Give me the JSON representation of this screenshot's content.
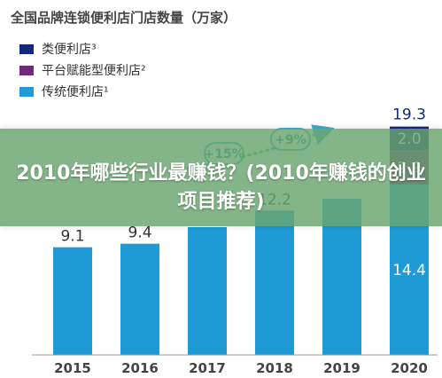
{
  "chart_data": {
    "type": "bar",
    "title": "全国品牌连锁便利店门店数量（万家）",
    "categories": [
      "2015",
      "2016",
      "2017",
      "2018",
      "2019",
      "2020"
    ],
    "series": [
      {
        "name": "传统便利店¹",
        "color": "#1f9ad6",
        "values": [
          9.1,
          9.4,
          10.8,
          12.2,
          13.2,
          14.4
        ]
      },
      {
        "name": "平台赋能型便利店²",
        "color": "#6d2a7a",
        "values": [
          0,
          0,
          0,
          0,
          0,
          2.9
        ]
      },
      {
        "name": "类便利店³",
        "color": "#14287a",
        "values": [
          0,
          0,
          0,
          0,
          0,
          2.0
        ]
      }
    ],
    "labels": {
      "bottom": [
        "9.1",
        "9.4",
        "",
        "12.2",
        "",
        "14.4"
      ],
      "middle": [
        "",
        "",
        "",
        "",
        "",
        "2.9"
      ],
      "top_segment": [
        "",
        "",
        "",
        "",
        "",
        "2.0"
      ],
      "total": [
        "",
        "",
        "",
        "",
        "",
        "19.3"
      ]
    },
    "growth_annotations": [
      "+15%",
      "+9%"
    ],
    "ylim": [
      0,
      21
    ],
    "xlabel": "",
    "ylabel": "",
    "grid": false,
    "legend_position": "top-left"
  },
  "banner": {
    "text": "2010年哪些行业最赚钱？(2010年赚钱的创业项目推荐)"
  }
}
